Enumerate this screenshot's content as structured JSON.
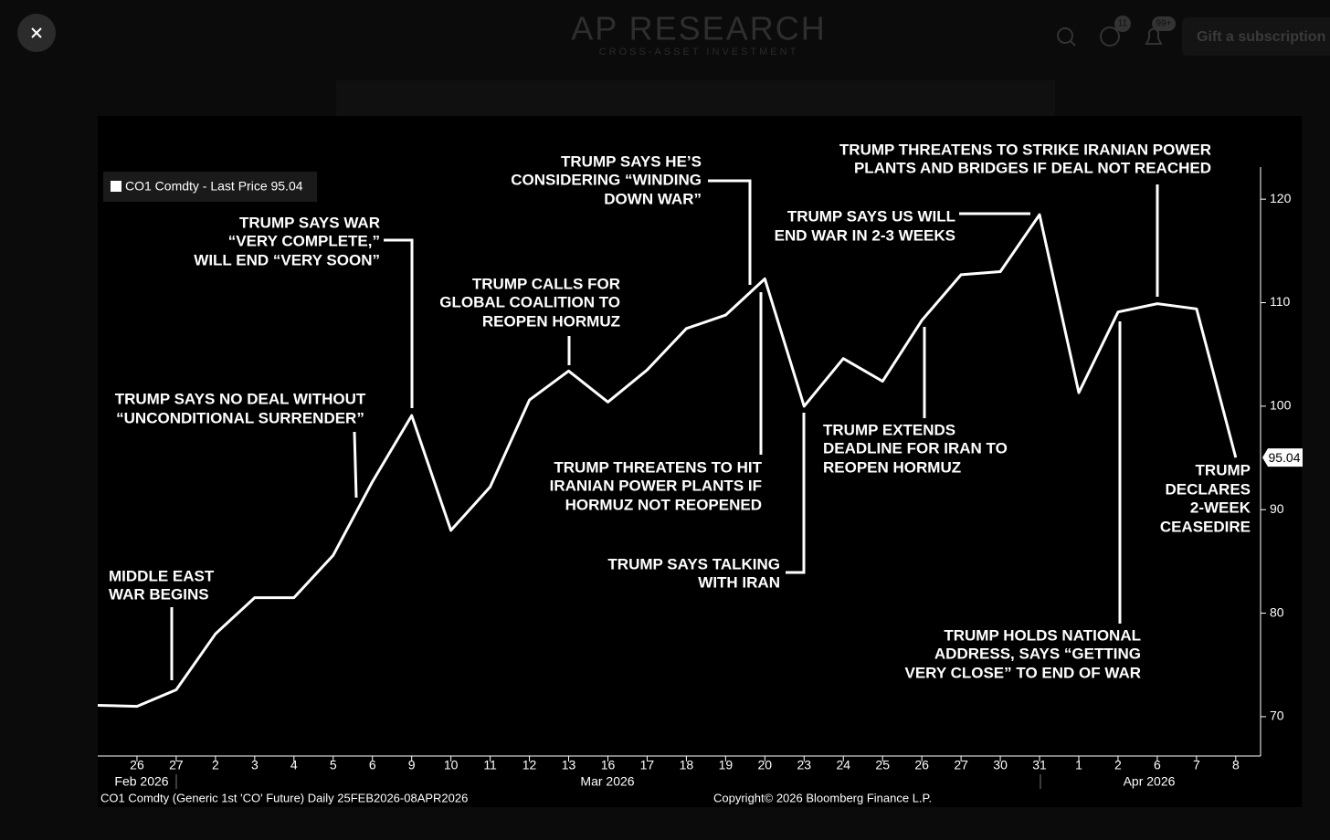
{
  "header": {
    "logo": "AP RESEARCH",
    "tagline": "CROSS-ASSET INVESTMENT",
    "messages_badge": "11",
    "notifications_badge": "99+",
    "button": "Gift a subscription"
  },
  "chart_data": {
    "type": "line",
    "legend": "CO1 Comdty - Last Price 95.04",
    "categories": [
      null,
      "26",
      "27",
      "2",
      "3",
      "4",
      "5",
      "6",
      "9",
      "10",
      "11",
      "12",
      "13",
      "16",
      "17",
      "18",
      "19",
      "20",
      "23",
      "24",
      "25",
      "26",
      "27",
      "30",
      "31",
      "1",
      "2",
      "6",
      "7",
      "8"
    ],
    "months": [
      "Feb 2026",
      "Mar 2026",
      "Apr 2026"
    ],
    "values": [
      71.1,
      71.0,
      72.6,
      78.0,
      81.5,
      81.5,
      85.6,
      92.7,
      99.1,
      88.0,
      92.2,
      100.6,
      103.4,
      100.4,
      103.5,
      107.5,
      108.8,
      112.3,
      100.0,
      104.6,
      102.4,
      108.3,
      112.7,
      113.0,
      118.5,
      101.3,
      109.1,
      109.9,
      109.4,
      95.04
    ],
    "color": "#ffffff",
    "ylim": [
      66.2,
      123.1
    ],
    "yticks": [
      70,
      80,
      90,
      100,
      110,
      120
    ],
    "annotations": [
      {
        "lines": [
          "MIDDLE EAST",
          "WAR BEGINS"
        ]
      },
      {
        "lines": [
          "TRUMP SAYS NO DEAL WITHOUT",
          "“UNCONDITIONAL SURRENDER”"
        ]
      },
      {
        "lines": [
          "TRUMP SAYS WAR",
          "“VERY COMPLETE,”",
          "WILL END “VERY SOON”"
        ]
      },
      {
        "lines": [
          "TRUMP CALLS FOR",
          "GLOBAL COALITION TO",
          "REOPEN HORMUZ"
        ]
      },
      {
        "lines": [
          "TRUMP SAYS HE’S",
          "CONSIDERING “WINDING",
          "DOWN WAR”"
        ]
      },
      {
        "lines": [
          "TRUMP THREATENS TO HIT",
          "IRANIAN POWER PLANTS IF",
          "HORMUZ NOT REOPENED"
        ]
      },
      {
        "lines": [
          "TRUMP SAYS TALKING",
          "WITH IRAN"
        ]
      },
      {
        "lines": [
          "TRUMP SAYS US WILL",
          "END WAR IN 2-3 WEEKS"
        ]
      },
      {
        "lines": [
          "TRUMP THREATENS TO STRIKE IRANIAN POWER",
          "PLANTS AND BRIDGES IF DEAL NOT REACHED"
        ]
      },
      {
        "lines": [
          "TRUMP EXTENDS",
          "DEADLINE FOR IRAN TO",
          "REOPEN HORMUZ"
        ]
      },
      {
        "lines": [
          "TRUMP HOLDS NATIONAL",
          "ADDRESS, SAYS “GETTING",
          "VERY CLOSE” TO END OF WAR"
        ]
      },
      {
        "lines": [
          "TRUMP",
          "DECLARES",
          "2-WEEK",
          "CEASEDIRE"
        ]
      }
    ],
    "source": "CO1 Comdty (Generic 1st 'CO' Future) Daily 25FEB2026-08APR2026",
    "copyright": "Copyright© 2026 Bloomberg Finance L.P."
  }
}
